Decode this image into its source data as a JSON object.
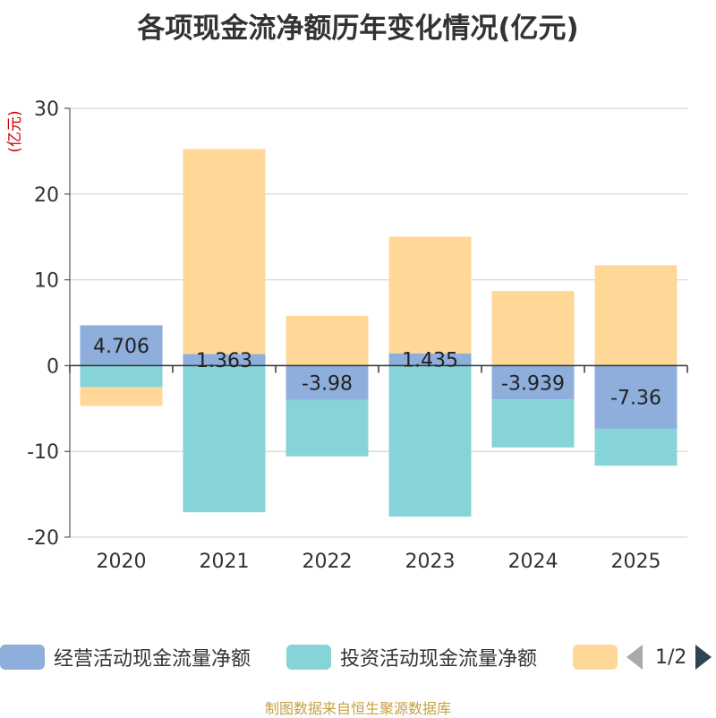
{
  "title": "各项现金流净额历年变化情况(亿元)",
  "source": "制图数据来自恒生聚源数据库",
  "pager": {
    "page": "1/2"
  },
  "colors": {
    "operating": "#8eaedc",
    "investing": "#86d4d8",
    "financing": "#ffd897"
  },
  "chart_data": {
    "type": "bar",
    "stacked": true,
    "title": "各项现金流净额历年变化情况(亿元)",
    "ylabel": "(亿元)",
    "xlabel": "",
    "ylim": [
      -20,
      30
    ],
    "yticks": [
      -20,
      -10,
      0,
      10,
      20,
      30
    ],
    "categories": [
      "2020",
      "2021",
      "2022",
      "2023",
      "2024",
      "2025"
    ],
    "series": [
      {
        "name": "经营活动现金流量净额",
        "values": [
          4.706,
          1.363,
          -3.98,
          1.435,
          -3.939,
          -7.36
        ],
        "labels": [
          "4.706",
          "1.363",
          "-3.98",
          "1.435",
          "-3.939",
          "-7.36"
        ]
      },
      {
        "name": "投资活动现金流量净额",
        "values": [
          -2.5,
          -17.1,
          -6.6,
          -17.6,
          -5.6,
          -4.3
        ]
      },
      {
        "name": "",
        "values": [
          -2.2,
          23.9,
          5.8,
          13.6,
          8.7,
          11.7
        ]
      }
    ],
    "legend_position": "bottom"
  }
}
